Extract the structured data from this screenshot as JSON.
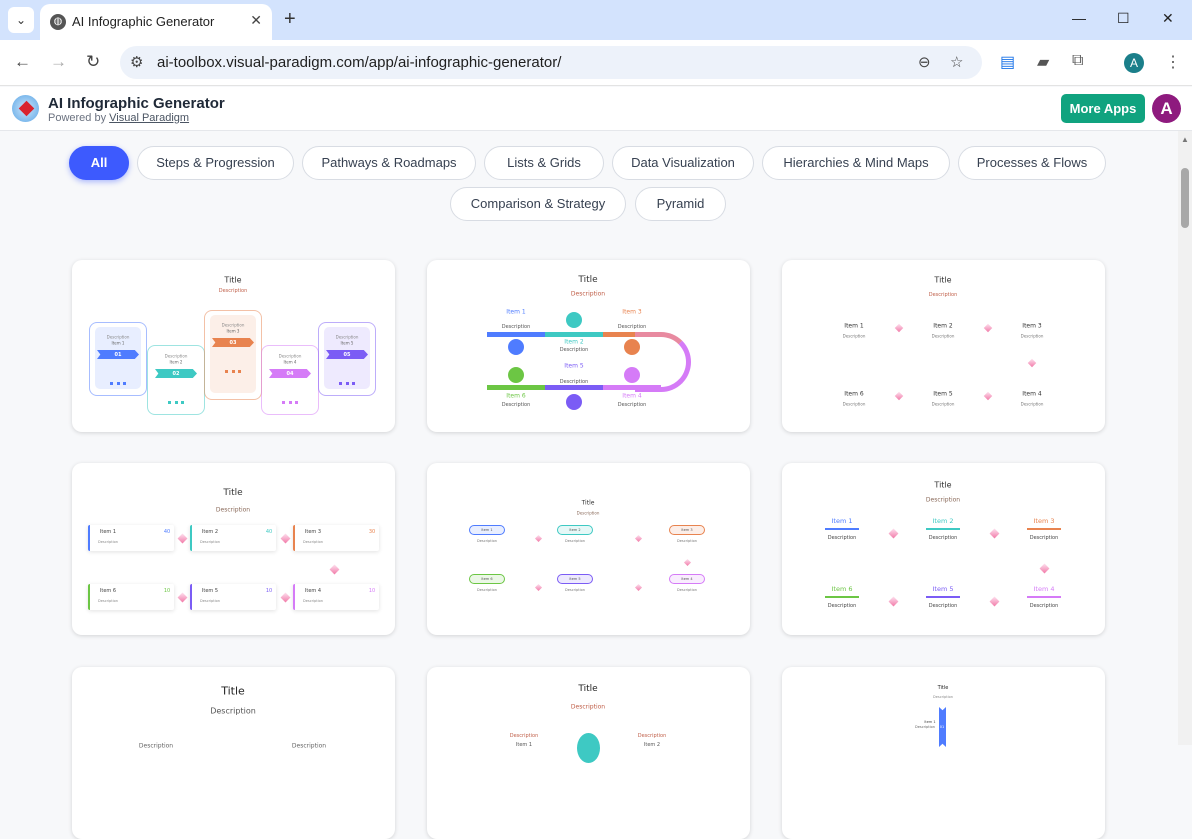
{
  "browser": {
    "tab_title": "AI Infographic Generator",
    "url": "ai-toolbox.visual-paradigm.com/app/ai-infographic-generator/",
    "profile_initial": "A"
  },
  "app": {
    "name": "AI Infographic Generator",
    "powered_prefix": "Powered by",
    "powered_link": "Visual Paradigm",
    "more_apps": "More Apps",
    "avatar_initial": "A",
    "accent": "#3d5afe",
    "more_apps_color": "#10a37f"
  },
  "filters": [
    "All",
    "Steps & Progression",
    "Pathways & Roadmaps",
    "Lists & Grids",
    "Data Visualization",
    "Hierarchies & Mind Maps",
    "Processes & Flows",
    "Comparison & Strategy",
    "Pyramid"
  ],
  "selected_filter": "All",
  "palette": {
    "blue": "#4f7cff",
    "teal": "#3ec9c3",
    "orange": "#e8834f",
    "pink": "#d57bf7",
    "purple": "#7b5cf5",
    "green": "#6cc644"
  },
  "cards": [
    {
      "title": "Title",
      "description": "Description",
      "items": [
        {
          "label": "Item 1",
          "description": "Description",
          "number": "01"
        },
        {
          "label": "Item 2",
          "description": "Description",
          "number": "02"
        },
        {
          "label": "Item 3",
          "description": "Description",
          "number": "03"
        },
        {
          "label": "Item 4",
          "description": "Description",
          "number": "04"
        },
        {
          "label": "Item 5",
          "description": "Description",
          "number": "05"
        }
      ]
    },
    {
      "title": "Title",
      "description": "Description",
      "items": [
        {
          "label": "Item 1",
          "description": "Description"
        },
        {
          "label": "Item 2",
          "description": "Description"
        },
        {
          "label": "Item 3",
          "description": "Description"
        },
        {
          "label": "Item 4",
          "description": "Description"
        },
        {
          "label": "Item 5",
          "description": "Description"
        },
        {
          "label": "Item 6",
          "description": "Description"
        }
      ]
    },
    {
      "title": "Title",
      "description": "Description",
      "items": [
        {
          "label": "Item 1",
          "description": "Description"
        },
        {
          "label": "Item 2",
          "description": "Description"
        },
        {
          "label": "Item 3",
          "description": "Description"
        },
        {
          "label": "Item 4",
          "description": "Description"
        },
        {
          "label": "Item 5",
          "description": "Description"
        },
        {
          "label": "Item 6",
          "description": "Description"
        }
      ]
    },
    {
      "title": "Title",
      "description": "Description",
      "items": [
        {
          "label": "Item 1",
          "description": "Description",
          "value": "40"
        },
        {
          "label": "Item 2",
          "description": "Description",
          "value": "40"
        },
        {
          "label": "Item 3",
          "description": "Description",
          "value": "30"
        },
        {
          "label": "Item 4",
          "description": "Description",
          "value": "10"
        },
        {
          "label": "Item 5",
          "description": "Description",
          "value": "10"
        },
        {
          "label": "Item 6",
          "description": "Description",
          "value": "10"
        }
      ]
    },
    {
      "title": "Title",
      "description": "Description",
      "items": [
        {
          "label": "Item 1",
          "description": "Description"
        },
        {
          "label": "Item 2",
          "description": "Description"
        },
        {
          "label": "Item 3",
          "description": "Description"
        },
        {
          "label": "Item 4",
          "description": "Description"
        },
        {
          "label": "Item 5",
          "description": "Description"
        },
        {
          "label": "Item 6",
          "description": "Description"
        }
      ]
    },
    {
      "title": "Title",
      "description": "Description",
      "items": [
        {
          "label": "Item 1",
          "description": "Description"
        },
        {
          "label": "Item 2",
          "description": "Description"
        },
        {
          "label": "Item 3",
          "description": "Description"
        },
        {
          "label": "Item 4",
          "description": "Description"
        },
        {
          "label": "Item 5",
          "description": "Description"
        },
        {
          "label": "Item 6",
          "description": "Description"
        }
      ]
    },
    {
      "title": "Title",
      "description": "Description",
      "items": [
        {
          "description": "Description"
        },
        {
          "description": "Description"
        }
      ]
    },
    {
      "title": "Title",
      "description": "Description",
      "items": [
        {
          "label": "Item 1",
          "description": "Description"
        },
        {
          "label": "Item 2",
          "description": "Description"
        }
      ]
    },
    {
      "title": "Title",
      "description": "Description",
      "items": [
        {
          "label": "Item 1",
          "description": "Description",
          "number": "01"
        }
      ]
    }
  ]
}
